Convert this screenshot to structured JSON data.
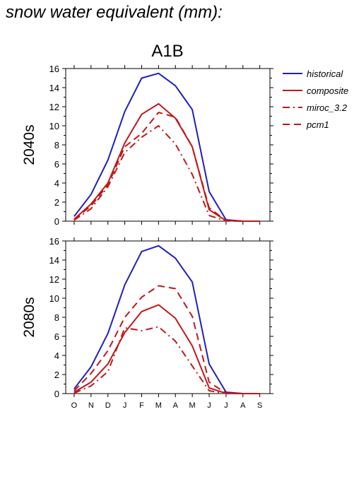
{
  "figure_title": "snow water equivalent (mm):",
  "scenario_title": "A1B",
  "legend": [
    {
      "label": "historical",
      "color": "#1f1fbf",
      "dash": "solid"
    },
    {
      "label": "composite",
      "color": "#c01818",
      "dash": "solid"
    },
    {
      "label": "miroc_3.2",
      "color": "#c01818",
      "dash": "dashdot"
    },
    {
      "label": "pcm1",
      "color": "#c01818",
      "dash": "dashed"
    }
  ],
  "chart_data": [
    {
      "type": "line",
      "title": "A1B",
      "ylabel": "2040s",
      "xlabel": "",
      "categories": [
        "O",
        "N",
        "D",
        "J",
        "F",
        "M",
        "A",
        "M",
        "J",
        "J",
        "A",
        "S"
      ],
      "ylim": [
        0,
        16
      ],
      "yticks": [
        0,
        2,
        4,
        6,
        8,
        10,
        12,
        14,
        16
      ],
      "show_x_tick_labels": false,
      "legend_position": "right",
      "grid": false,
      "series": [
        {
          "name": "historical",
          "values": [
            0.5,
            2.8,
            6.4,
            11.5,
            15.0,
            15.5,
            14.2,
            11.7,
            3.1,
            0.15,
            0.0,
            0.0
          ]
        },
        {
          "name": "composite",
          "values": [
            0.2,
            1.8,
            4.0,
            8.2,
            11.2,
            12.3,
            10.8,
            7.8,
            1.2,
            0.05,
            0.0,
            0.0
          ]
        },
        {
          "name": "miroc_3.2",
          "values": [
            0.1,
            1.3,
            3.6,
            7.2,
            8.8,
            10.0,
            8.1,
            4.9,
            0.6,
            0.02,
            0.0,
            0.0
          ]
        },
        {
          "name": "pcm1",
          "values": [
            0.2,
            1.6,
            3.8,
            7.8,
            9.2,
            11.4,
            10.9,
            7.8,
            1.4,
            0.05,
            0.0,
            0.0
          ]
        }
      ]
    },
    {
      "type": "line",
      "title": "",
      "ylabel": "2080s",
      "xlabel": "",
      "categories": [
        "O",
        "N",
        "D",
        "J",
        "F",
        "M",
        "A",
        "M",
        "J",
        "J",
        "A",
        "S"
      ],
      "ylim": [
        0,
        16
      ],
      "yticks": [
        0,
        2,
        4,
        6,
        8,
        10,
        12,
        14,
        16
      ],
      "show_x_tick_labels": true,
      "legend_position": "right",
      "grid": false,
      "series": [
        {
          "name": "historical",
          "values": [
            0.5,
            2.8,
            6.3,
            11.4,
            14.9,
            15.5,
            14.2,
            11.7,
            3.1,
            0.15,
            0.0,
            0.0
          ]
        },
        {
          "name": "composite",
          "values": [
            0.15,
            1.2,
            3.1,
            6.4,
            8.6,
            9.3,
            7.9,
            5.0,
            0.6,
            0.02,
            0.0,
            0.0
          ]
        },
        {
          "name": "miroc_3.2",
          "values": [
            0.05,
            0.8,
            2.3,
            6.9,
            6.6,
            7.0,
            5.5,
            2.9,
            0.3,
            0.01,
            0.0,
            0.0
          ]
        },
        {
          "name": "pcm1",
          "values": [
            0.3,
            2.1,
            4.5,
            8.0,
            10.1,
            11.3,
            11.0,
            8.1,
            1.2,
            0.05,
            0.0,
            0.0
          ]
        }
      ]
    }
  ]
}
